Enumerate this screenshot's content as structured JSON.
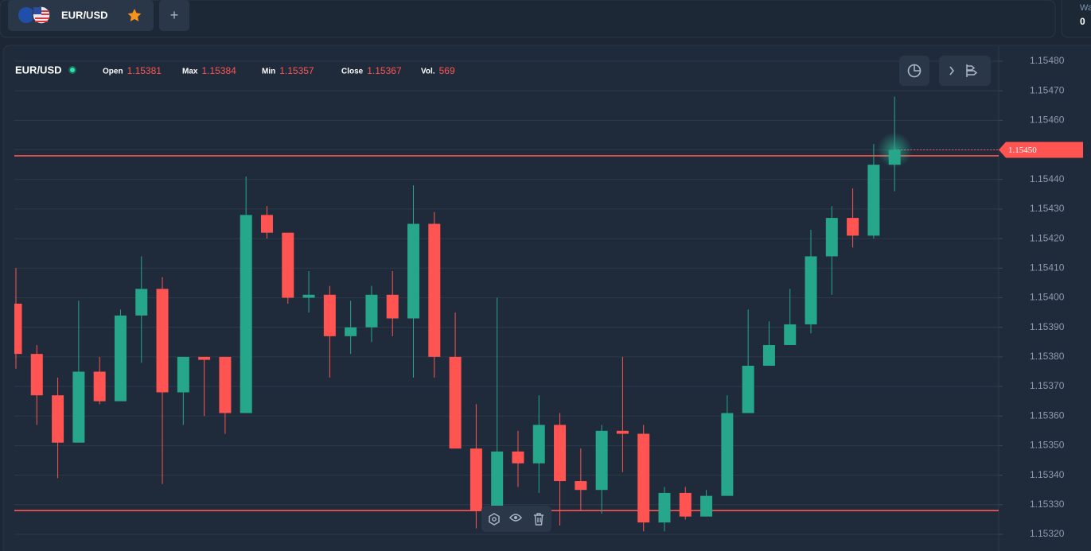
{
  "header": {
    "tab_symbol": "EUR/USD",
    "add_button": "+",
    "account_label": "Wa",
    "account_value": "0"
  },
  "chart_data": {
    "type": "candlestick",
    "title": "EUR/USD",
    "info": [
      {
        "label": "Open",
        "value": 1.15381
      },
      {
        "label": "Max",
        "value": 1.15384
      },
      {
        "label": "Min",
        "value": 1.15357
      },
      {
        "label": "Close",
        "value": 1.15367
      },
      {
        "label": "Vol.",
        "value": 569
      }
    ],
    "open": [
      1.15398,
      1.15381,
      1.15367,
      1.15351,
      1.15375,
      1.15365,
      1.15394,
      1.15403,
      1.15368,
      1.1538,
      1.1538,
      1.15361,
      1.15428,
      1.15422,
      1.154,
      1.15401,
      1.15387,
      1.1539,
      1.15401,
      1.15393,
      1.15425,
      1.1538,
      1.15349,
      1.15329,
      1.15348,
      1.15344,
      1.15357,
      1.15338,
      1.15335,
      1.15355,
      1.15354,
      1.15324,
      1.15334,
      1.15326,
      1.15333,
      1.15361,
      1.15377,
      1.15384,
      1.15391,
      1.15414,
      1.15427,
      1.15421,
      1.15445
    ],
    "high": [
      1.1541,
      1.15384,
      1.15373,
      1.15399,
      1.1538,
      1.15396,
      1.15414,
      1.15407,
      1.1538,
      1.1538,
      1.1538,
      1.15441,
      1.15431,
      1.15422,
      1.15409,
      1.15404,
      1.15399,
      1.15404,
      1.15409,
      1.15438,
      1.15429,
      1.15395,
      1.15364,
      1.154,
      1.15355,
      1.15367,
      1.15361,
      1.15349,
      1.15357,
      1.1538,
      1.15357,
      1.15336,
      1.15336,
      1.15335,
      1.15367,
      1.15396,
      1.15392,
      1.15403,
      1.15423,
      1.15431,
      1.15437,
      1.15452,
      1.15468
    ],
    "low": [
      1.15376,
      1.15357,
      1.15339,
      1.15351,
      1.15364,
      1.15365,
      1.15378,
      1.15337,
      1.15357,
      1.1536,
      1.15354,
      1.15361,
      1.1542,
      1.15398,
      1.15395,
      1.15373,
      1.15381,
      1.15385,
      1.15387,
      1.15373,
      1.15373,
      1.15349,
      1.15322,
      1.15329,
      1.15336,
      1.15334,
      1.15323,
      1.15328,
      1.15327,
      1.15341,
      1.15321,
      1.15321,
      1.15325,
      1.15326,
      1.15333,
      1.15361,
      1.15377,
      1.15384,
      1.15388,
      1.15401,
      1.15417,
      1.1542,
      1.15436
    ],
    "close": [
      1.15381,
      1.15367,
      1.15351,
      1.15375,
      1.15365,
      1.15394,
      1.15403,
      1.15368,
      1.1538,
      1.15379,
      1.15361,
      1.15428,
      1.15422,
      1.154,
      1.15401,
      1.15387,
      1.1539,
      1.15401,
      1.15393,
      1.15425,
      1.1538,
      1.15349,
      1.15328,
      1.15348,
      1.15344,
      1.15357,
      1.15338,
      1.15335,
      1.15355,
      1.15354,
      1.15324,
      1.15334,
      1.15326,
      1.15333,
      1.15361,
      1.15377,
      1.15384,
      1.15391,
      1.15414,
      1.15427,
      1.15421,
      1.15445,
      1.1545
    ],
    "up_color": "#26a68a",
    "down_color": "#ff5451",
    "levels": [
      1.15448,
      1.15328
    ],
    "level_color": "#ff5451",
    "current_price": {
      "value": 1.1545,
      "label": "1.15450"
    },
    "ylim": [
      1.15314,
      1.15484
    ],
    "yticks": [
      {
        "value": 1.1548,
        "label": "1.15480"
      },
      {
        "value": 1.1547,
        "label": "1.15470"
      },
      {
        "value": 1.1546,
        "label": "1.15460"
      },
      {
        "value": 1.1545,
        "label": "1.15450"
      },
      {
        "value": 1.1544,
        "label": "1.15440"
      },
      {
        "value": 1.1543,
        "label": "1.15430"
      },
      {
        "value": 1.1542,
        "label": "1.15420"
      },
      {
        "value": 1.1541,
        "label": "1.15410"
      },
      {
        "value": 1.154,
        "label": "1.15400"
      },
      {
        "value": 1.1539,
        "label": "1.15390"
      },
      {
        "value": 1.1538,
        "label": "1.15380"
      },
      {
        "value": 1.1537,
        "label": "1.15370"
      },
      {
        "value": 1.1536,
        "label": "1.15360"
      },
      {
        "value": 1.1535,
        "label": "1.15350"
      },
      {
        "value": 1.1534,
        "label": "1.15340"
      },
      {
        "value": 1.1533,
        "label": "1.15330"
      },
      {
        "value": 1.1532,
        "label": "1.15320"
      }
    ],
    "grid": true
  }
}
